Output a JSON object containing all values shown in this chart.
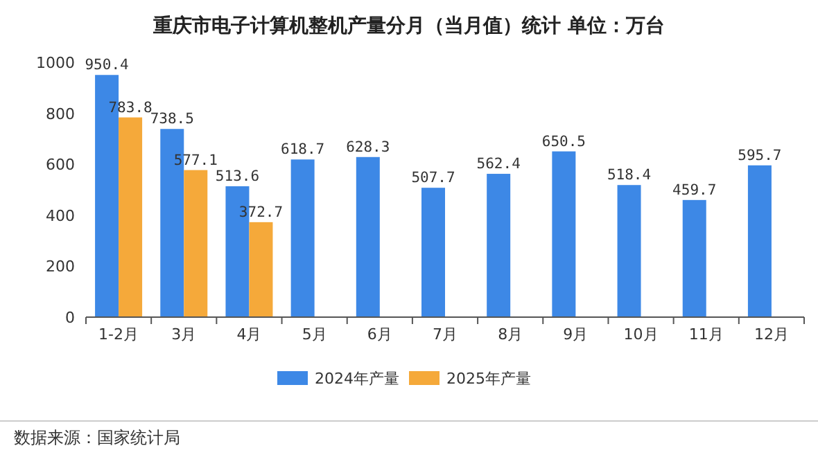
{
  "chart_data": {
    "type": "bar",
    "title": "重庆市电子计算机整机产量分月（当月值）统计 单位：万台",
    "categories": [
      "1-2月",
      "3月",
      "4月",
      "5月",
      "6月",
      "7月",
      "8月",
      "9月",
      "10月",
      "11月",
      "12月"
    ],
    "series": [
      {
        "name": "2024年产量",
        "color": "#3d88e6",
        "values": [
          950.4,
          738.5,
          513.6,
          618.7,
          628.3,
          507.7,
          562.4,
          650.5,
          518.4,
          459.7,
          595.7
        ]
      },
      {
        "name": "2025年产量",
        "color": "#f5a93a",
        "values": [
          783.8,
          577.1,
          372.7,
          null,
          null,
          null,
          null,
          null,
          null,
          null,
          null
        ]
      }
    ],
    "ylim": [
      0,
      1000
    ],
    "yticks": [
      0,
      200,
      400,
      600,
      800,
      1000
    ],
    "data_labels": true,
    "legend": "bottom",
    "annotations": [
      "数据来源：国家统计局"
    ]
  }
}
